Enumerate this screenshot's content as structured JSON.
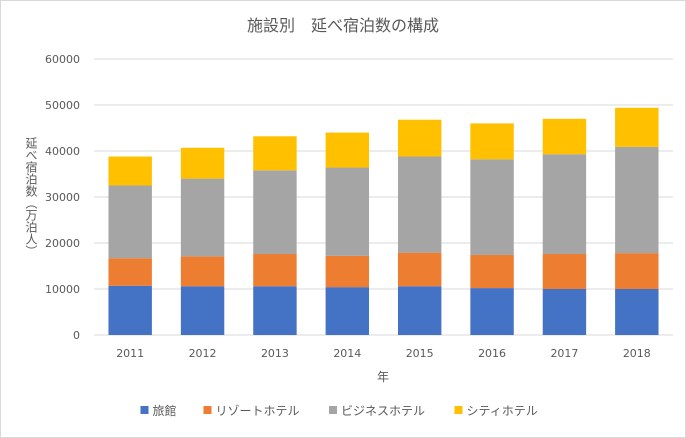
{
  "chart_data": {
    "type": "bar",
    "stacked": true,
    "title": "施設別　延べ宿泊数の構成",
    "xlabel": "年",
    "ylabel": "延べ宿泊数（万泊人）",
    "categories": [
      "2011",
      "2012",
      "2013",
      "2014",
      "2015",
      "2016",
      "2017",
      "2018"
    ],
    "ylim": [
      0,
      60000
    ],
    "yticks": [
      0,
      10000,
      20000,
      30000,
      40000,
      50000,
      60000
    ],
    "grid": true,
    "legend_position": "bottom",
    "series": [
      {
        "name": "旅館",
        "color": "#4472c4",
        "values": [
          10700,
          10600,
          10600,
          10400,
          10600,
          10200,
          10000,
          10000
        ]
      },
      {
        "name": "リゾートホテル",
        "color": "#ed7d31",
        "values": [
          6000,
          6500,
          7000,
          6800,
          7300,
          7200,
          7600,
          7800
        ]
      },
      {
        "name": "ビジネスホテル",
        "color": "#a5a5a5",
        "values": [
          15800,
          16900,
          18200,
          19200,
          20900,
          20800,
          21700,
          23100
        ]
      },
      {
        "name": "シティホテル",
        "color": "#ffc000",
        "values": [
          6300,
          6700,
          7400,
          7600,
          8000,
          7800,
          7700,
          8500
        ]
      }
    ]
  }
}
